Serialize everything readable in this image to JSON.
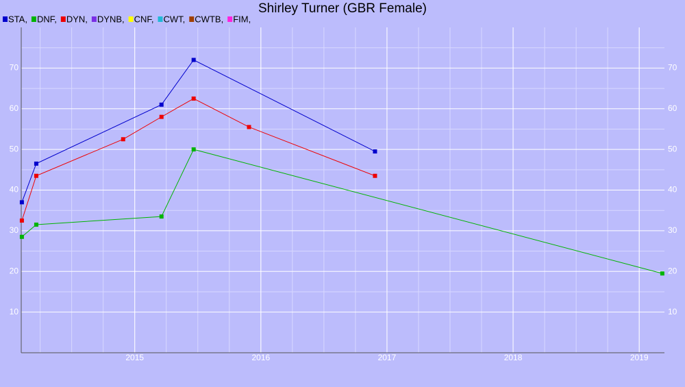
{
  "chart_data": {
    "type": "line",
    "title": "Shirley Turner (GBR Female)",
    "xlim": [
      2014.1,
      2019.2
    ],
    "xticks": [
      2015,
      2016,
      2017,
      2018,
      2019
    ],
    "ylim": [
      0,
      80
    ],
    "yticks": [
      10,
      20,
      30,
      40,
      50,
      60,
      70
    ],
    "grid": true,
    "series": [
      {
        "name": "STA,",
        "color": "#0000cc",
        "x": [
          2014.105,
          2014.219,
          2015.212,
          2015.467,
          2016.905
        ],
        "values": [
          37,
          46.5,
          61,
          72,
          49.5
        ]
      },
      {
        "name": "DNF,",
        "color": "#00b400",
        "x": [
          2014.105,
          2014.219,
          2015.212,
          2015.467,
          2019.183
        ],
        "values": [
          28.5,
          31.5,
          33.5,
          50,
          19.5
        ]
      },
      {
        "name": "DYN,",
        "color": "#ee0000",
        "x": [
          2014.105,
          2014.219,
          2014.908,
          2015.212,
          2015.467,
          2015.906,
          2016.905
        ],
        "values": [
          32.5,
          43.5,
          52.5,
          58,
          62.5,
          55.5,
          43.5
        ]
      },
      {
        "name": "DYNB,",
        "color": "#7a2ee6",
        "x": [],
        "values": []
      },
      {
        "name": "CNF,",
        "color": "#ffff00",
        "x": [],
        "values": []
      },
      {
        "name": "CWT,",
        "color": "#22b8d8",
        "x": [],
        "values": []
      },
      {
        "name": "CWTB,",
        "color": "#a04000",
        "x": [],
        "values": []
      },
      {
        "name": "FIM,",
        "color": "#ff22dd",
        "x": [],
        "values": []
      }
    ]
  }
}
